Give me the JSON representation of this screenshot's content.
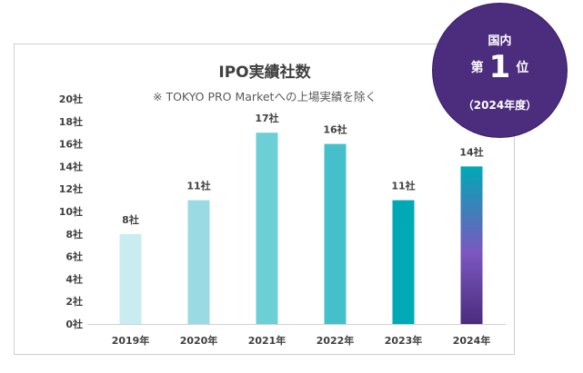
{
  "chart_data": {
    "type": "bar",
    "title": "IPO実績社数",
    "subtitle": "※ TOKYO PRO Marketへの上場実績を除く",
    "categories": [
      "2019年",
      "2020年",
      "2021年",
      "2022年",
      "2023年",
      "2024年"
    ],
    "values": [
      8,
      11,
      17,
      16,
      11,
      14
    ],
    "data_labels": [
      "8社",
      "11社",
      "17社",
      "16社",
      "11社",
      "14社"
    ],
    "yticks": [
      "0社",
      "2社",
      "4社",
      "6社",
      "8社",
      "10社",
      "12社",
      "14社",
      "16社",
      "18社",
      "20社"
    ],
    "ylim": [
      0,
      20
    ],
    "grid": false,
    "colors": [
      "#c9ecf0",
      "#9adbe3",
      "#6dcfd6",
      "#45c0cb",
      "#00a9b5",
      "#00a9b5"
    ],
    "gradient_last_bar": [
      "#00a9b5",
      "#7b57bf",
      "#4b2c7d"
    ]
  },
  "badge": {
    "line1": "国内",
    "rank_pre": "第",
    "rank_num": "1",
    "rank_post": "位",
    "line3": "（2024年度）",
    "color": "#4b2c7d"
  }
}
